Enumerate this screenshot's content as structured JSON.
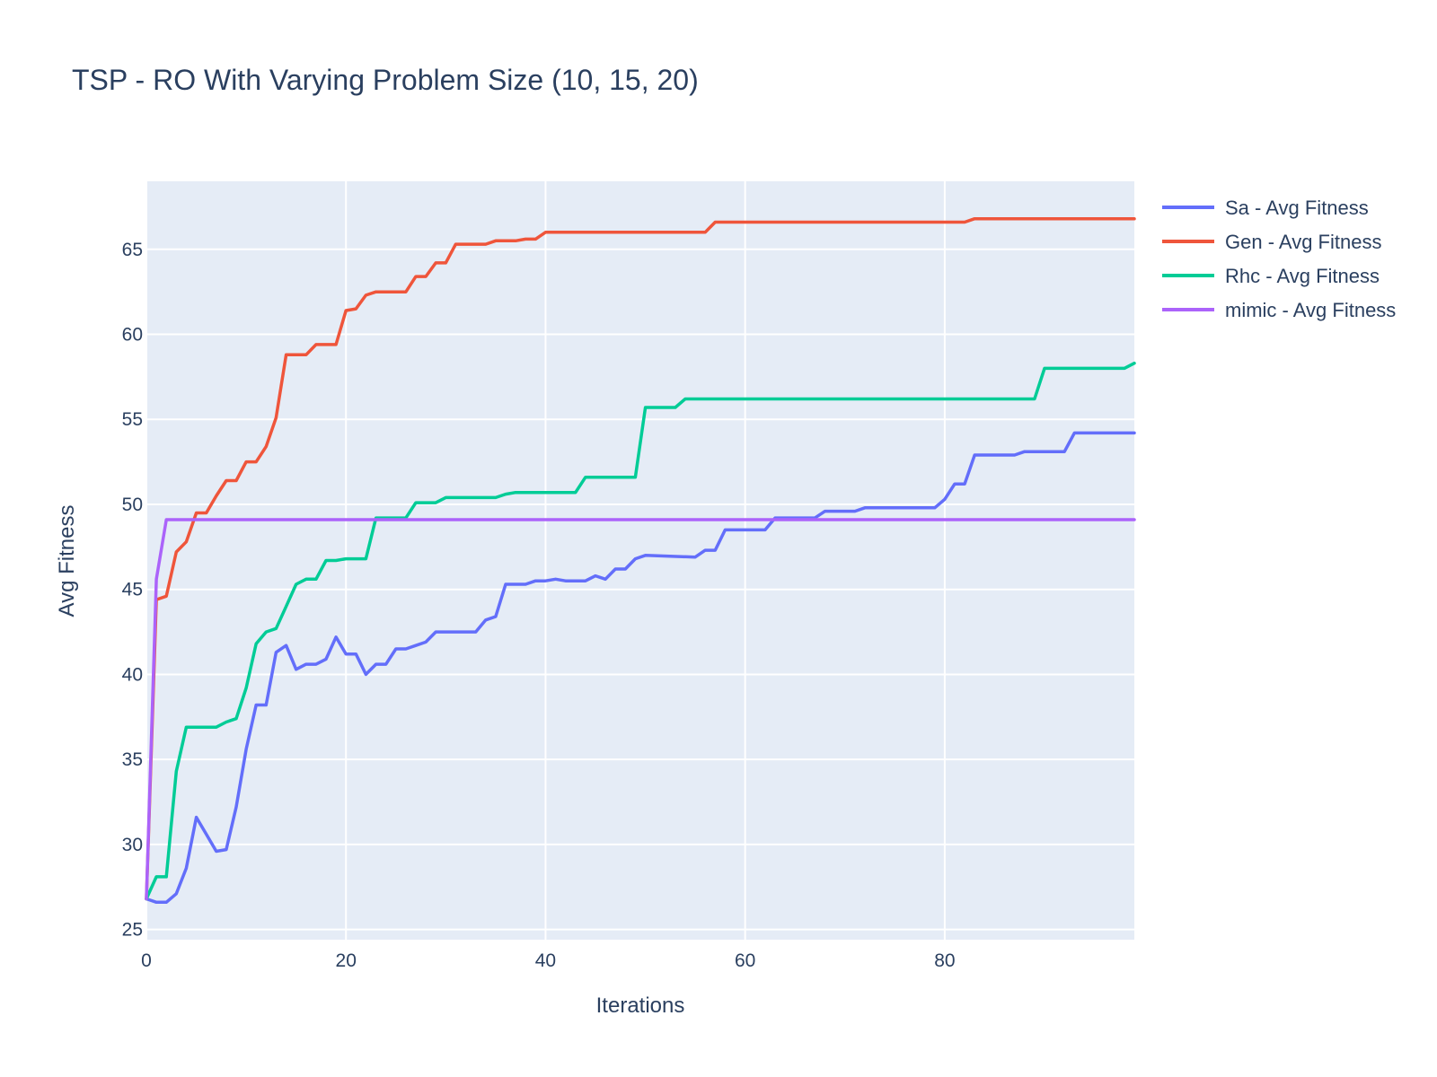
{
  "chart_data": {
    "type": "line",
    "title": "TSP - RO With Varying Problem Size (10, 15, 20)",
    "xlabel": "Iterations",
    "ylabel": "Avg Fitness",
    "xlim": [
      0,
      99
    ],
    "ylim": [
      24.4,
      69
    ],
    "x_ticks": [
      0,
      20,
      40,
      60,
      80
    ],
    "y_ticks": [
      25,
      30,
      35,
      40,
      45,
      50,
      55,
      60,
      65
    ],
    "grid": true,
    "legend_position": "top-right",
    "plot_background": "#e5ecf6",
    "series": [
      {
        "name": "Sa - Avg Fitness",
        "color": "#636efa",
        "points": [
          [
            0,
            26.8
          ],
          [
            1,
            26.6
          ],
          [
            2,
            26.6
          ],
          [
            3,
            27.1
          ],
          [
            4,
            28.6
          ],
          [
            5,
            31.6
          ],
          [
            6,
            30.6
          ],
          [
            7,
            29.6
          ],
          [
            8,
            29.7
          ],
          [
            9,
            32.2
          ],
          [
            10,
            35.6
          ],
          [
            11,
            38.2
          ],
          [
            12,
            38.2
          ],
          [
            13,
            41.3
          ],
          [
            14,
            41.7
          ],
          [
            15,
            40.3
          ],
          [
            16,
            40.6
          ],
          [
            17,
            40.6
          ],
          [
            18,
            40.9
          ],
          [
            19,
            42.2
          ],
          [
            20,
            41.2
          ],
          [
            21,
            41.2
          ],
          [
            22,
            40.0
          ],
          [
            23,
            40.6
          ],
          [
            24,
            40.6
          ],
          [
            25,
            41.5
          ],
          [
            26,
            41.5
          ],
          [
            27,
            41.7
          ],
          [
            28,
            41.9
          ],
          [
            29,
            42.5
          ],
          [
            30,
            42.5
          ],
          [
            33,
            42.5
          ],
          [
            34,
            43.2
          ],
          [
            35,
            43.4
          ],
          [
            36,
            45.3
          ],
          [
            38,
            45.3
          ],
          [
            39,
            45.5
          ],
          [
            40,
            45.5
          ],
          [
            41,
            45.6
          ],
          [
            42,
            45.5
          ],
          [
            44,
            45.5
          ],
          [
            45,
            45.8
          ],
          [
            46,
            45.6
          ],
          [
            47,
            46.2
          ],
          [
            48,
            46.2
          ],
          [
            49,
            46.8
          ],
          [
            50,
            47.0
          ],
          [
            55,
            46.9
          ],
          [
            56,
            47.3
          ],
          [
            57,
            47.3
          ],
          [
            58,
            48.5
          ],
          [
            62,
            48.5
          ],
          [
            63,
            49.2
          ],
          [
            67,
            49.2
          ],
          [
            68,
            49.6
          ],
          [
            71,
            49.6
          ],
          [
            72,
            49.8
          ],
          [
            79,
            49.8
          ],
          [
            80,
            50.3
          ],
          [
            81,
            51.2
          ],
          [
            82,
            51.2
          ],
          [
            83,
            52.9
          ],
          [
            87,
            52.9
          ],
          [
            88,
            53.1
          ],
          [
            92,
            53.1
          ],
          [
            93,
            54.2
          ],
          [
            99,
            54.2
          ]
        ]
      },
      {
        "name": "Gen - Avg Fitness",
        "color": "#ef553b",
        "points": [
          [
            0,
            26.8
          ],
          [
            1,
            44.4
          ],
          [
            2,
            44.6
          ],
          [
            3,
            47.2
          ],
          [
            4,
            47.8
          ],
          [
            5,
            49.5
          ],
          [
            6,
            49.5
          ],
          [
            7,
            50.5
          ],
          [
            8,
            51.4
          ],
          [
            9,
            51.4
          ],
          [
            10,
            52.5
          ],
          [
            11,
            52.5
          ],
          [
            12,
            53.4
          ],
          [
            13,
            55.1
          ],
          [
            14,
            58.8
          ],
          [
            16,
            58.8
          ],
          [
            17,
            59.4
          ],
          [
            19,
            59.4
          ],
          [
            20,
            61.4
          ],
          [
            21,
            61.5
          ],
          [
            22,
            62.3
          ],
          [
            23,
            62.5
          ],
          [
            26,
            62.5
          ],
          [
            27,
            63.4
          ],
          [
            28,
            63.4
          ],
          [
            29,
            64.2
          ],
          [
            30,
            64.2
          ],
          [
            31,
            65.3
          ],
          [
            34,
            65.3
          ],
          [
            35,
            65.5
          ],
          [
            37,
            65.5
          ],
          [
            38,
            65.6
          ],
          [
            39,
            65.6
          ],
          [
            40,
            66.0
          ],
          [
            56,
            66.0
          ],
          [
            57,
            66.6
          ],
          [
            82,
            66.6
          ],
          [
            83,
            66.8
          ],
          [
            99,
            66.8
          ]
        ]
      },
      {
        "name": "Rhc - Avg Fitness",
        "color": "#00cc96",
        "points": [
          [
            0,
            26.8
          ],
          [
            1,
            28.1
          ],
          [
            2,
            28.1
          ],
          [
            3,
            34.3
          ],
          [
            4,
            36.9
          ],
          [
            7,
            36.9
          ],
          [
            8,
            37.2
          ],
          [
            9,
            37.4
          ],
          [
            10,
            39.2
          ],
          [
            11,
            41.8
          ],
          [
            12,
            42.5
          ],
          [
            13,
            42.7
          ],
          [
            14,
            44.0
          ],
          [
            15,
            45.3
          ],
          [
            16,
            45.6
          ],
          [
            17,
            45.6
          ],
          [
            18,
            46.7
          ],
          [
            19,
            46.7
          ],
          [
            20,
            46.8
          ],
          [
            22,
            46.8
          ],
          [
            23,
            49.2
          ],
          [
            26,
            49.2
          ],
          [
            27,
            50.1
          ],
          [
            29,
            50.1
          ],
          [
            30,
            50.4
          ],
          [
            35,
            50.4
          ],
          [
            36,
            50.6
          ],
          [
            37,
            50.7
          ],
          [
            43,
            50.7
          ],
          [
            44,
            51.6
          ],
          [
            49,
            51.6
          ],
          [
            50,
            55.7
          ],
          [
            53,
            55.7
          ],
          [
            54,
            56.2
          ],
          [
            89,
            56.2
          ],
          [
            90,
            58.0
          ],
          [
            98,
            58.0
          ],
          [
            99,
            58.3
          ]
        ]
      },
      {
        "name": "mimic - Avg Fitness",
        "color": "#ab63fa",
        "points": [
          [
            0,
            26.8
          ],
          [
            1,
            45.6
          ],
          [
            2,
            49.1
          ],
          [
            99,
            49.1
          ]
        ]
      }
    ]
  }
}
